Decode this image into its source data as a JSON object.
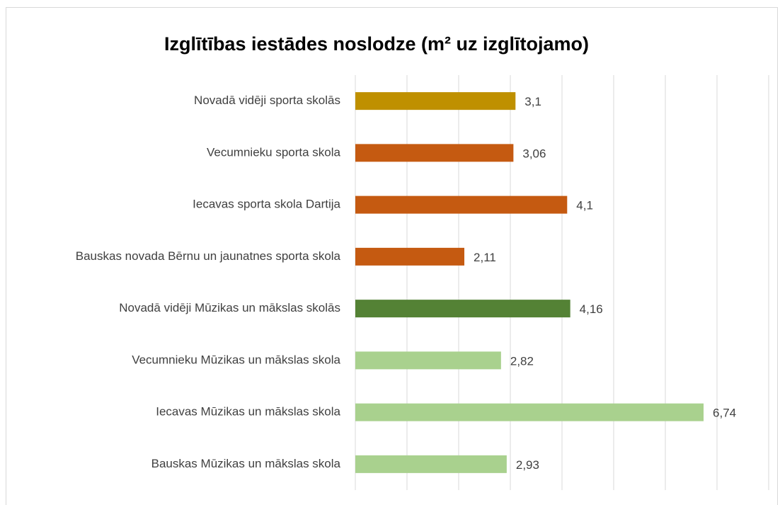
{
  "chart_data": {
    "type": "hbar",
    "title": "Izglītības iestādes noslodze (m² uz izglītojamo)",
    "categories": [
      "Novadā vidēji sporta skolās",
      "Vecumnieku sporta skola",
      "Iecavas sporta skola Dartija",
      "Bauskas novada Bērnu un jaunatnes sporta skola",
      "Novadā vidēji Mūzikas un mākslas skolās",
      "Vecumnieku Mūzikas un mākslas skola",
      "Iecavas Mūzikas un mākslas skola",
      "Bauskas Mūzikas un mākslas skola"
    ],
    "values": [
      3.1,
      3.06,
      4.1,
      2.11,
      4.16,
      2.82,
      6.74,
      2.93
    ],
    "value_labels": [
      "3,1",
      "3,06",
      "4,1",
      "2,11",
      "4,16",
      "2,82",
      "6,74",
      "2,93"
    ],
    "colors": [
      "#bf9000",
      "#c55a11",
      "#c55a11",
      "#c55a11",
      "#548235",
      "#a9d18e",
      "#a9d18e",
      "#a9d18e"
    ],
    "xlim": [
      0,
      8
    ],
    "xticks": [
      0,
      1,
      2,
      3,
      4,
      5,
      6,
      7,
      8
    ],
    "grid": true
  }
}
